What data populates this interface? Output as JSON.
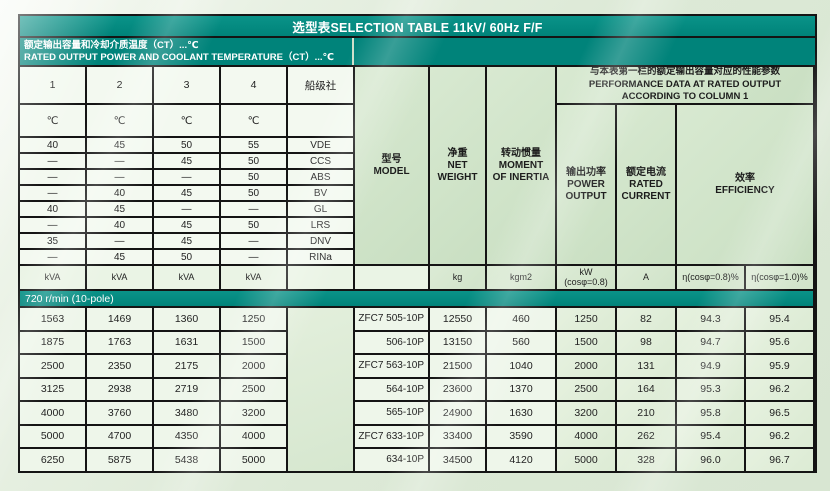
{
  "accent_teal": "#00837a",
  "t": {
    "title": "选型表SELECTION TABLE 11kV/ 60Hz  F/F",
    "subtitle": {
      "line1": "额定输出容量和冷却介质温度（CT）...℃",
      "line2": "RATED OUTPUT POWER AND COOLANT TEMPERATURE（CT）...℃"
    },
    "header": {
      "cols": [
        "1",
        "2",
        "3",
        "4"
      ],
      "society": "船级社"
    },
    "deg": [
      "℃",
      "℃",
      "℃",
      "℃"
    ],
    "perf": {
      "l1": "与本表第一栏的额定输出容量对应的性能参数",
      "l2": "PERFORMANCE DATA AT RATED OUTPUT",
      "l3": "ACCORDING TO COLUMN 1"
    },
    "model_h": {
      "zh": "型号",
      "en": "MODEL"
    },
    "weight_h": {
      "zh": "净重",
      "l1": "NET",
      "l2": "WEIGHT"
    },
    "inertia_h": {
      "zh": "转动惯量",
      "l1": "MOMENT",
      "l2": "OF INERTIA"
    },
    "power_h": {
      "zh": "输出功率",
      "l1": "POWER",
      "l2": "OUTPUT"
    },
    "current_h": {
      "zh": "额定电流",
      "l1": "RATED",
      "l2": "CURRENT"
    },
    "eff_h": {
      "zh": "效率",
      "en": "EFFICIENCY"
    },
    "units": {
      "kva": "kVA",
      "kg": "kg",
      "kgm2": "kgm2",
      "kw1": "kW",
      "kw2": "(cosφ=0.8)",
      "a": "A",
      "e08": "η(cosφ=0.8)%",
      "e10": "η(cosφ=1.0)%"
    },
    "banner": "720 r/min (10-pole)",
    "temp_rows": [
      {
        "v": [
          "40",
          "45",
          "50",
          "55"
        ],
        "s": "VDE"
      },
      {
        "v": [
          "—",
          "—",
          "45",
          "50"
        ],
        "s": "CCS"
      },
      {
        "v": [
          "—",
          "—",
          "—",
          "50"
        ],
        "s": "ABS"
      },
      {
        "v": [
          "—",
          "40",
          "45",
          "50"
        ],
        "s": "BV"
      },
      {
        "v": [
          "40",
          "45",
          "—",
          "—"
        ],
        "s": "GL"
      },
      {
        "v": [
          "—",
          "40",
          "45",
          "50"
        ],
        "s": "LRS"
      },
      {
        "v": [
          "35",
          "—",
          "45",
          "—"
        ],
        "s": "DNV"
      },
      {
        "v": [
          "—",
          "45",
          "50",
          "—"
        ],
        "s": "RINa"
      }
    ],
    "rows": [
      {
        "v": [
          "1563",
          "1469",
          "1360",
          "1250"
        ],
        "model": "ZFC7 505-10P",
        "weight": "12550",
        "inertia": "460",
        "kw": "1250",
        "a": "82",
        "e08": "94.3",
        "e10": "95.4"
      },
      {
        "v": [
          "1875",
          "1763",
          "1631",
          "1500"
        ],
        "model": "506-10P",
        "weight": "13150",
        "inertia": "560",
        "kw": "1500",
        "a": "98",
        "e08": "94.7",
        "e10": "95.6"
      },
      {
        "v": [
          "2500",
          "2350",
          "2175",
          "2000"
        ],
        "model": "ZFC7 563-10P",
        "weight": "21500",
        "inertia": "1040",
        "kw": "2000",
        "a": "131",
        "e08": "94.9",
        "e10": "95.9"
      },
      {
        "v": [
          "3125",
          "2938",
          "2719",
          "2500"
        ],
        "model": "564-10P",
        "weight": "23600",
        "inertia": "1370",
        "kw": "2500",
        "a": "164",
        "e08": "95.3",
        "e10": "96.2"
      },
      {
        "v": [
          "4000",
          "3760",
          "3480",
          "3200"
        ],
        "model": "565-10P",
        "weight": "24900",
        "inertia": "1630",
        "kw": "3200",
        "a": "210",
        "e08": "95.8",
        "e10": "96.5"
      },
      {
        "v": [
          "5000",
          "4700",
          "4350",
          "4000"
        ],
        "model": "ZFC7 633-10P",
        "weight": "33400",
        "inertia": "3590",
        "kw": "4000",
        "a": "262",
        "e08": "95.4",
        "e10": "96.2"
      },
      {
        "v": [
          "6250",
          "5875",
          "5438",
          "5000"
        ],
        "model": "634-10P",
        "weight": "34500",
        "inertia": "4120",
        "kw": "5000",
        "a": "328",
        "e08": "96.0",
        "e10": "96.7"
      }
    ]
  }
}
